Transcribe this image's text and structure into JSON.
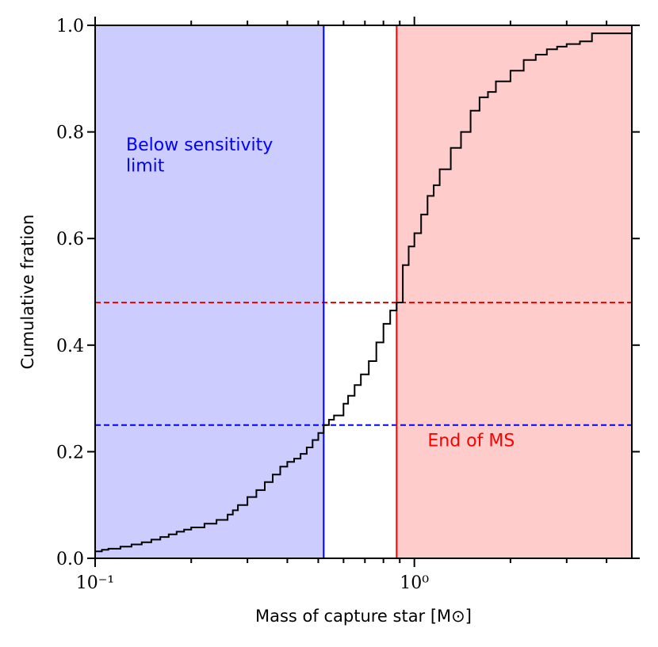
{
  "chart_data": {
    "type": "line",
    "subtype": "empirical-cdf-step",
    "title": "",
    "xlabel": "Mass of capture star [M⊙]",
    "ylabel": "Cumulative fration",
    "xscale": "log",
    "xlim": [
      0.1,
      4.8
    ],
    "ylim": [
      0.0,
      1.0
    ],
    "xticks": [
      {
        "value": 0.1,
        "label": "10⁻¹"
      },
      {
        "value": 1.0,
        "label": "10⁰"
      }
    ],
    "yticks": [
      {
        "value": 0.0,
        "label": "0.0"
      },
      {
        "value": 0.2,
        "label": "0.2"
      },
      {
        "value": 0.4,
        "label": "0.4"
      },
      {
        "value": 0.6,
        "label": "0.6"
      },
      {
        "value": 0.8,
        "label": "0.8"
      },
      {
        "value": 1.0,
        "label": "1.0"
      }
    ],
    "grid": false,
    "regions": [
      {
        "name": "below-sensitivity",
        "x_from": 0.1,
        "x_to": 0.52,
        "color": "#ccccff"
      },
      {
        "name": "end-of-ms",
        "x_from": 0.88,
        "x_to": 4.8,
        "color": "#ffcccc"
      }
    ],
    "vlines": [
      {
        "name": "sensitivity-limit",
        "x": 0.52,
        "color": "#0000ff"
      },
      {
        "name": "ms-limit",
        "x": 0.88,
        "color": "#ff0000"
      }
    ],
    "hlines": [
      {
        "name": "fraction-at-sensitivity",
        "y": 0.25,
        "color": "#0000ff",
        "style": "dashed"
      },
      {
        "name": "fraction-at-ms",
        "y": 0.48,
        "color": "#ff0000",
        "style": "dashed"
      }
    ],
    "annotations": [
      {
        "name": "below-sensitivity-label",
        "lines": [
          "Below sensitivity",
          "limit"
        ],
        "x": 0.125,
        "y": 0.765,
        "color": "#0000ff"
      },
      {
        "name": "end-of-ms-label",
        "lines": [
          "End of MS"
        ],
        "x": 1.1,
        "y": 0.21,
        "color": "#ff0000"
      }
    ],
    "series": [
      {
        "name": "cumulative-fraction",
        "color": "#000000",
        "x": [
          0.1,
          0.105,
          0.11,
          0.12,
          0.13,
          0.14,
          0.15,
          0.16,
          0.17,
          0.18,
          0.19,
          0.2,
          0.22,
          0.24,
          0.26,
          0.27,
          0.28,
          0.3,
          0.32,
          0.34,
          0.36,
          0.38,
          0.4,
          0.42,
          0.44,
          0.46,
          0.48,
          0.5,
          0.52,
          0.54,
          0.56,
          0.6,
          0.62,
          0.65,
          0.68,
          0.72,
          0.76,
          0.8,
          0.84,
          0.88,
          0.92,
          0.96,
          1.0,
          1.05,
          1.1,
          1.15,
          1.2,
          1.3,
          1.4,
          1.5,
          1.6,
          1.7,
          1.8,
          2.0,
          2.2,
          2.4,
          2.6,
          2.8,
          3.0,
          3.3,
          3.6,
          4.0,
          4.8
        ],
        "y": [
          0.013,
          0.016,
          0.018,
          0.022,
          0.026,
          0.03,
          0.035,
          0.04,
          0.045,
          0.05,
          0.054,
          0.058,
          0.065,
          0.072,
          0.082,
          0.09,
          0.1,
          0.115,
          0.128,
          0.143,
          0.157,
          0.172,
          0.181,
          0.187,
          0.196,
          0.208,
          0.222,
          0.235,
          0.25,
          0.26,
          0.268,
          0.29,
          0.305,
          0.325,
          0.345,
          0.37,
          0.405,
          0.44,
          0.465,
          0.48,
          0.55,
          0.585,
          0.61,
          0.645,
          0.68,
          0.7,
          0.73,
          0.77,
          0.8,
          0.84,
          0.865,
          0.875,
          0.895,
          0.915,
          0.935,
          0.945,
          0.955,
          0.96,
          0.965,
          0.97,
          0.985,
          0.985,
          0.985
        ]
      }
    ]
  }
}
